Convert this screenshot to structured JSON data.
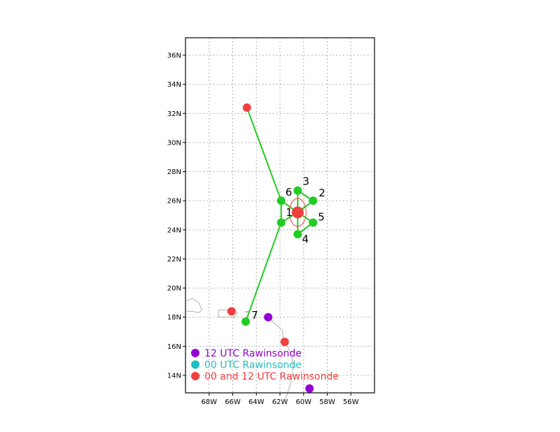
{
  "map": {
    "lon_range": [
      -70,
      -54
    ],
    "lat_range": [
      12.8,
      37.2
    ],
    "x_ticks": [
      {
        "lon": -68,
        "label": "68W"
      },
      {
        "lon": -66,
        "label": "66W"
      },
      {
        "lon": -64,
        "label": "64W"
      },
      {
        "lon": -62,
        "label": "62W"
      },
      {
        "lon": -60,
        "label": "60W"
      },
      {
        "lon": -58,
        "label": "58W"
      },
      {
        "lon": -56,
        "label": "56W"
      }
    ],
    "y_ticks": [
      {
        "lat": 14,
        "label": "14N"
      },
      {
        "lat": 16,
        "label": "16N"
      },
      {
        "lat": 18,
        "label": "18N"
      },
      {
        "lat": 20,
        "label": "20N"
      },
      {
        "lat": 22,
        "label": "22N"
      },
      {
        "lat": 24,
        "label": "24N"
      },
      {
        "lat": 26,
        "label": "26N"
      },
      {
        "lat": 28,
        "label": "28N"
      },
      {
        "lat": 30,
        "label": "30N"
      },
      {
        "lat": 32,
        "label": "32N"
      },
      {
        "lat": 34,
        "label": "34N"
      },
      {
        "lat": 36,
        "label": "36N"
      }
    ],
    "grid": true,
    "colors": {
      "purple": "#9400d3",
      "cyan": "#20c0c0",
      "red": "#f04040",
      "green": "#22cc22",
      "land": "#b0b0b0",
      "grid": "#999999"
    }
  },
  "center": {
    "lon": -60.5,
    "lat": 25.2,
    "label": "1"
  },
  "stations": [
    {
      "id": "2",
      "lon": -59.2,
      "lat": 26.0
    },
    {
      "id": "3",
      "lon": -60.5,
      "lat": 26.7
    },
    {
      "id": "4",
      "lon": -60.5,
      "lat": 23.7
    },
    {
      "id": "5",
      "lon": -59.2,
      "lat": 24.5
    },
    {
      "id": "6",
      "lon": -61.9,
      "lat": 26.0
    },
    {
      "id": "",
      "lon": -61.9,
      "lat": 24.5
    },
    {
      "id": "7",
      "lon": -64.9,
      "lat": 17.7
    }
  ],
  "links": [
    {
      "from": [
        -60.5,
        25.2
      ],
      "to": [
        -59.2,
        26.0
      ]
    },
    {
      "from": [
        -60.5,
        25.2
      ],
      "to": [
        -60.5,
        26.7
      ]
    },
    {
      "from": [
        -60.5,
        25.2
      ],
      "to": [
        -60.5,
        23.7
      ]
    },
    {
      "from": [
        -60.5,
        25.2
      ],
      "to": [
        -59.2,
        24.5
      ]
    },
    {
      "from": [
        -60.5,
        25.2
      ],
      "to": [
        -61.9,
        26.0
      ]
    },
    {
      "from": [
        -60.5,
        25.2
      ],
      "to": [
        -61.9,
        24.5
      ]
    },
    {
      "from": [
        -59.2,
        26.0
      ],
      "to": [
        -60.5,
        26.7
      ]
    },
    {
      "from": [
        -59.2,
        24.5
      ],
      "to": [
        -60.5,
        23.7
      ]
    },
    {
      "from": [
        -61.9,
        26.0
      ],
      "to": [
        -61.9,
        24.5
      ]
    },
    {
      "from": [
        -61.9,
        26.0
      ],
      "to": [
        -64.8,
        32.4
      ]
    },
    {
      "from": [
        -61.9,
        24.5
      ],
      "to": [
        -64.9,
        17.7
      ]
    }
  ],
  "rawinsondes": [
    {
      "type": "both",
      "lon": -64.8,
      "lat": 32.4
    },
    {
      "type": "both",
      "lon": -66.1,
      "lat": 18.4
    },
    {
      "type": "both",
      "lon": -61.6,
      "lat": 16.3
    },
    {
      "type": "12utc",
      "lon": -63.0,
      "lat": 18.0
    },
    {
      "type": "12utc",
      "lon": -59.5,
      "lat": 13.1
    }
  ],
  "legend": {
    "items": [
      {
        "label": "12 UTC Rawinsonde",
        "color": "#9400d3"
      },
      {
        "label": "00 UTC Rawinsonde",
        "color": "#20c0c0"
      },
      {
        "label": "00 and 12 UTC Rawinsonde",
        "color": "#f04040"
      }
    ]
  }
}
